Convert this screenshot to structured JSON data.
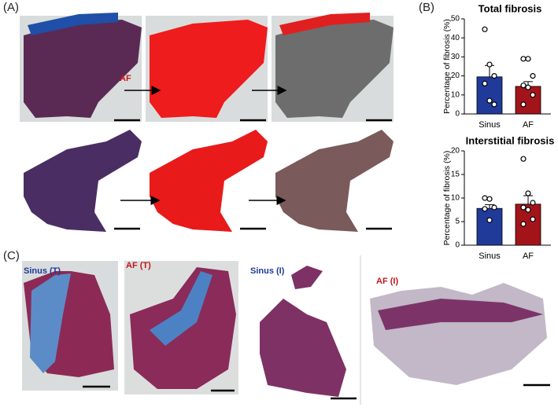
{
  "figure": {
    "panel_labels": [
      "(A)",
      "(B)",
      "(C)"
    ],
    "image_labels": [
      "AF",
      "Sinus (T)",
      "AF (T)",
      "Sinus (I)",
      "AF (I)"
    ]
  },
  "chart_data": [
    {
      "type": "bar",
      "title": "Total fibrosis",
      "y_label": "Percentage of fibrosis (%)",
      "categories": [
        "Sinus",
        "AF"
      ],
      "colors": [
        "#1f3a99",
        "#a3141a"
      ],
      "values": [
        19.5,
        14.5
      ],
      "errors": [
        6,
        2.5
      ],
      "points": [
        [
          44.5,
          26,
          20,
          16,
          7,
          5
        ],
        [
          29,
          29,
          20,
          15,
          14,
          10,
          5
        ]
      ],
      "ylim": [
        0,
        50
      ],
      "yticks": [
        0,
        10,
        20,
        30,
        40,
        50
      ]
    },
    {
      "type": "bar",
      "title": "Interstitial fibrosis",
      "y_label": "Percentage of fibrosis (%)",
      "categories": [
        "Sinus",
        "AF"
      ],
      "colors": [
        "#1f3a99",
        "#a3141a"
      ],
      "values": [
        7.8,
        8.7
      ],
      "errors": [
        0.8,
        1.8
      ],
      "points": [
        [
          10,
          9.8,
          8,
          7.7,
          5.3
        ],
        [
          18.3,
          11,
          9,
          8,
          7.5,
          5.5,
          4.5
        ]
      ],
      "ylim": [
        0,
        20
      ],
      "yticks": [
        0,
        5,
        10,
        15,
        20
      ]
    }
  ]
}
